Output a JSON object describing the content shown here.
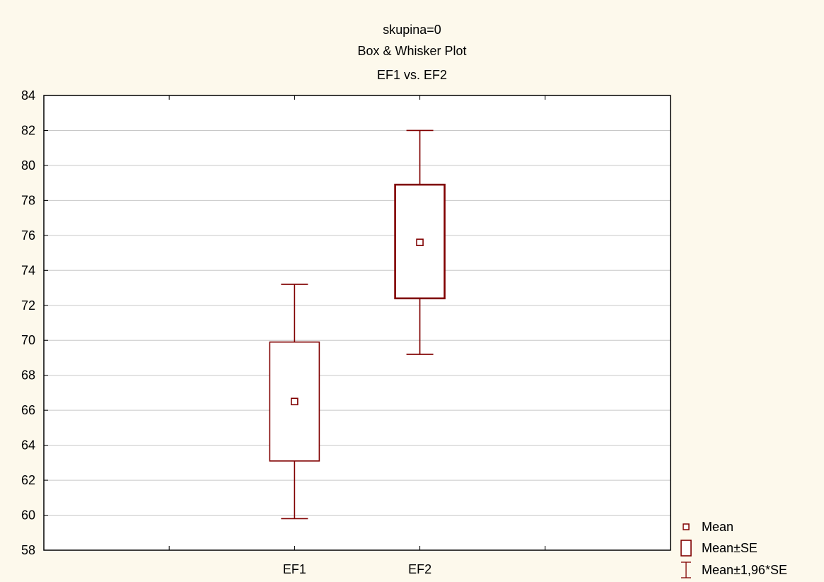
{
  "colors": {
    "background": "#fdf9ec",
    "plot_background": "#ffffff",
    "series": "#800000"
  },
  "chart_data": {
    "type": "box",
    "title_lines": [
      "skupina=0",
      "Box & Whisker Plot",
      "EF1      vs. EF2"
    ],
    "categories": [
      "EF1",
      "EF2"
    ],
    "series": [
      {
        "category": "EF1",
        "mean": 66.5,
        "se_low": 63.1,
        "se_high": 69.9,
        "ci_low": 59.8,
        "ci_high": 73.2
      },
      {
        "category": "EF2",
        "mean": 75.6,
        "se_low": 72.4,
        "se_high": 78.9,
        "ci_low": 69.2,
        "ci_high": 82.0
      }
    ],
    "ylim": [
      58,
      84
    ],
    "yticks": [
      "58",
      "60",
      "62",
      "64",
      "66",
      "68",
      "70",
      "72",
      "74",
      "76",
      "78",
      "80",
      "82",
      "84"
    ],
    "grid": true,
    "legend_position": "bottom-right",
    "legend": [
      {
        "label": "Mean",
        "symbol": "point"
      },
      {
        "label": "Mean±SE",
        "symbol": "box"
      },
      {
        "label": "Mean±1,96*SE",
        "symbol": "whisker"
      }
    ]
  }
}
